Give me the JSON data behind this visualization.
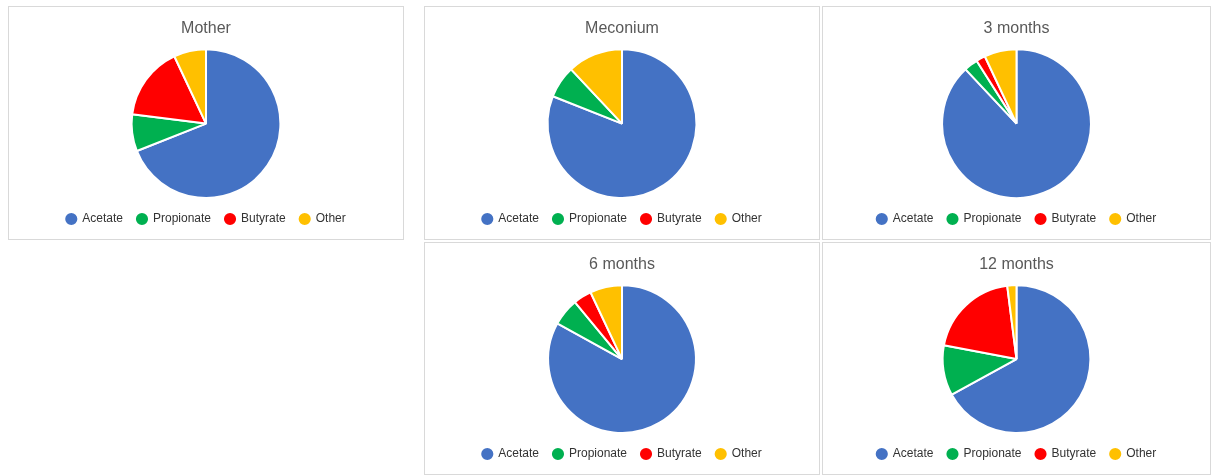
{
  "chart_data": [
    {
      "type": "pie",
      "title": "Mother",
      "categories": [
        "Acetate",
        "Propionate",
        "Butyrate",
        "Other"
      ],
      "values": [
        69,
        8,
        16,
        7
      ],
      "colors": [
        "#4472c4",
        "#00b050",
        "#ff0000",
        "#ffc000"
      ],
      "legend": "bottom"
    },
    {
      "type": "pie",
      "title": "Meconium",
      "categories": [
        "Acetate",
        "Propionate",
        "Butyrate",
        "Other"
      ],
      "values": [
        81,
        7,
        0,
        12
      ],
      "colors": [
        "#4472c4",
        "#00b050",
        "#ff0000",
        "#ffc000"
      ],
      "legend": "bottom"
    },
    {
      "type": "pie",
      "title": "3 months",
      "categories": [
        "Acetate",
        "Propionate",
        "Butyrate",
        "Other"
      ],
      "values": [
        88,
        3,
        2,
        7
      ],
      "colors": [
        "#4472c4",
        "#00b050",
        "#ff0000",
        "#ffc000"
      ],
      "legend": "bottom"
    },
    {
      "type": "pie",
      "title": "6 months",
      "categories": [
        "Acetate",
        "Propionate",
        "Butyrate",
        "Other"
      ],
      "values": [
        83,
        6,
        4,
        7
      ],
      "colors": [
        "#4472c4",
        "#00b050",
        "#ff0000",
        "#ffc000"
      ],
      "legend": "bottom"
    },
    {
      "type": "pie",
      "title": "12 months",
      "categories": [
        "Acetate",
        "Propionate",
        "Butyrate",
        "Other"
      ],
      "values": [
        67,
        11,
        20,
        2
      ],
      "colors": [
        "#4472c4",
        "#00b050",
        "#ff0000",
        "#ffc000"
      ],
      "legend": "bottom"
    }
  ]
}
